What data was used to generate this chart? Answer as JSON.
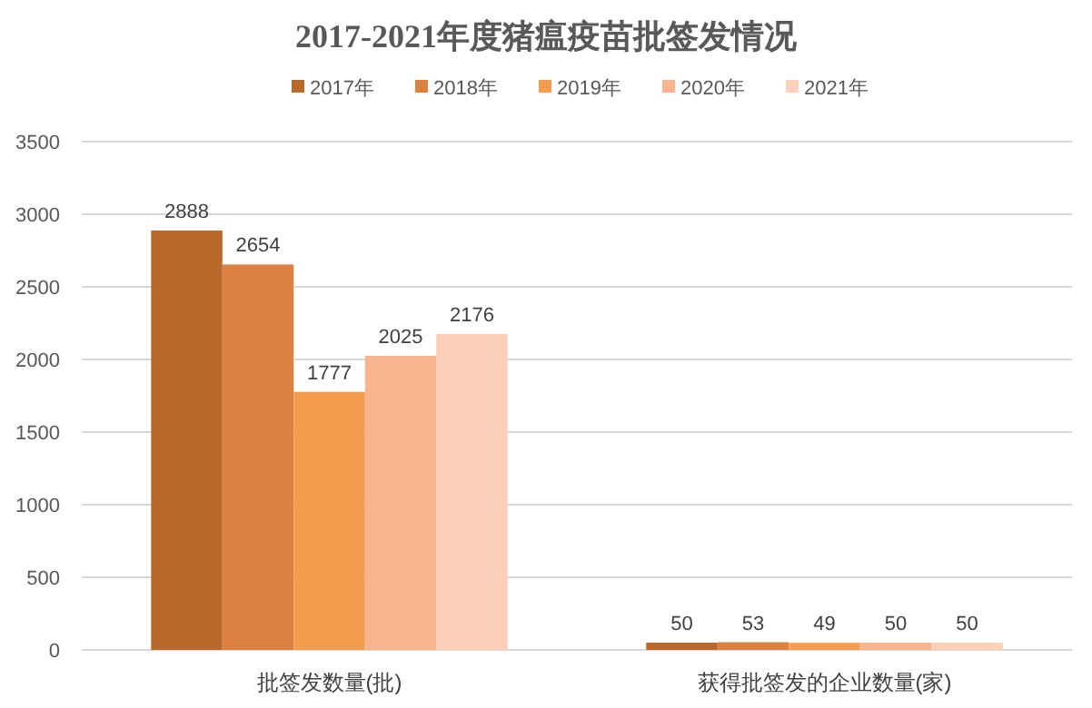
{
  "chart_data": {
    "type": "bar",
    "title": "2017-2021年度猪瘟疫苗批签发情况",
    "categories": [
      "批签发数量(批)",
      "获得批签发的企业数量(家)"
    ],
    "series": [
      {
        "name": "2017年",
        "color": "#b9692c",
        "values": [
          2888,
          50
        ]
      },
      {
        "name": "2018年",
        "color": "#dc8140",
        "values": [
          2654,
          53
        ]
      },
      {
        "name": "2019年",
        "color": "#f59d4f",
        "values": [
          1777,
          49
        ]
      },
      {
        "name": "2020年",
        "color": "#f8b48c",
        "values": [
          2025,
          50
        ]
      },
      {
        "name": "2021年",
        "color": "#fbcfb8",
        "values": [
          2176,
          50
        ]
      }
    ],
    "ylim": [
      0,
      3500
    ],
    "yticks": [
      0,
      500,
      1000,
      1500,
      2000,
      2500,
      3000,
      3500
    ],
    "grid": "y",
    "legend": "top",
    "data_labels": true
  }
}
